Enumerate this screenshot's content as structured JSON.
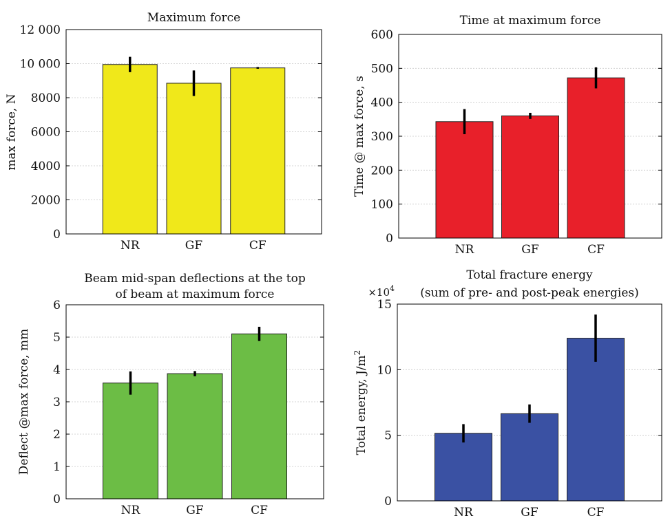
{
  "chart_data": [
    {
      "type": "bar",
      "title": "Maximum force",
      "ylabel": "max force, N",
      "categories": [
        "NR",
        "GF",
        "CF"
      ],
      "values": [
        9950,
        8850,
        9750
      ],
      "errors": [
        450,
        750,
        50
      ],
      "ylim": [
        0,
        12000
      ],
      "yticks": [
        0,
        2000,
        4000,
        6000,
        8000,
        10000,
        12000
      ],
      "yticklabels": [
        "0",
        "2000",
        "4000",
        "6000",
        "8000",
        "10 000",
        "12 000"
      ],
      "color": "#f0e81a",
      "grid": true
    },
    {
      "type": "bar",
      "title": "Time at maximum force",
      "ylabel": "Time @ max force, s",
      "categories": [
        "NR",
        "GF",
        "CF"
      ],
      "values": [
        343,
        360,
        472
      ],
      "errors": [
        37,
        9,
        31
      ],
      "ylim": [
        0,
        600
      ],
      "yticks": [
        0,
        100,
        200,
        300,
        400,
        500,
        600
      ],
      "yticklabels": [
        "0",
        "100",
        "200",
        "300",
        "400",
        "500",
        "600"
      ],
      "color": "#e8202a",
      "grid": true
    },
    {
      "type": "bar",
      "title_lines": [
        "Beam mid-span deflections at the top",
        "of beam at maximum force"
      ],
      "ylabel": "Deflect @max force, mm",
      "categories": [
        "NR",
        "GF",
        "CF"
      ],
      "values": [
        3.58,
        3.87,
        5.1
      ],
      "errors": [
        0.36,
        0.08,
        0.22
      ],
      "ylim": [
        0,
        6
      ],
      "yticks": [
        0,
        1,
        2,
        3,
        4,
        5,
        6
      ],
      "yticklabels": [
        "0",
        "1",
        "2",
        "3",
        "4",
        "5",
        "6"
      ],
      "color": "#6cbd45",
      "grid": true
    },
    {
      "type": "bar",
      "title_lines": [
        "Total fracture energy",
        "(sum of pre- and post-peak energies)"
      ],
      "ylabel": "Total energy, J/m",
      "ylabel_sup": "2",
      "exponent_label": "×10",
      "exponent_sup": "4",
      "categories": [
        "NR",
        "GF",
        "CF"
      ],
      "values": [
        51500,
        66500,
        124000
      ],
      "errors": [
        7000,
        7000,
        18000
      ],
      "ylim": [
        0,
        150000
      ],
      "yticks": [
        0,
        50000,
        100000,
        150000
      ],
      "yticklabels": [
        "0",
        "5",
        "10",
        "15"
      ],
      "color": "#3a51a3",
      "grid": true
    }
  ]
}
